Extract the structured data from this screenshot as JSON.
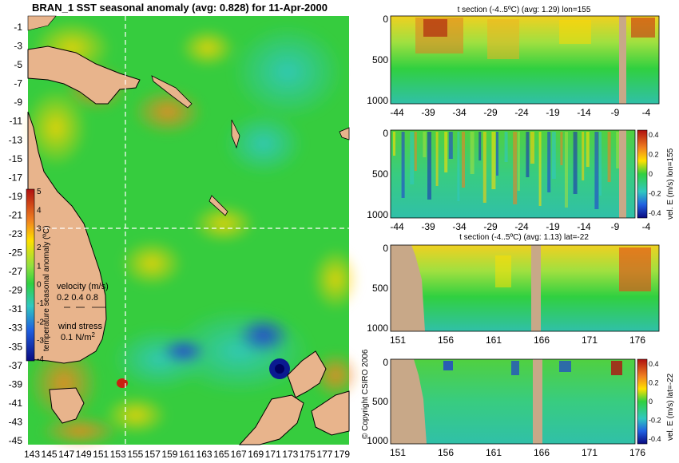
{
  "map": {
    "title": "BRAN_1 SST seasonal anomaly  (avg: 0.828) for 11-Apr-2000",
    "type": "heatmap",
    "lat_ticks": [
      "-1",
      "-3",
      "-5",
      "-7",
      "-9",
      "-11",
      "-13",
      "-15",
      "-17",
      "-19",
      "-21",
      "-23",
      "-25",
      "-27",
      "-29",
      "-31",
      "-33",
      "-35",
      "-37",
      "-39",
      "-41",
      "-43",
      "-45"
    ],
    "lon_ticks": [
      "143",
      "145",
      "147",
      "149",
      "151",
      "153",
      "155",
      "157",
      "159",
      "161",
      "163",
      "165",
      "167",
      "169",
      "171",
      "173",
      "175",
      "177",
      "179"
    ],
    "crosshair": {
      "lon": 155,
      "lat": -22
    },
    "colorbar": {
      "label": "temperature seasonal anomaly (ºC)",
      "ticks": [
        "5",
        "4",
        "3",
        "2",
        "1",
        "0",
        "-1",
        "-2",
        "-3",
        "-4"
      ]
    },
    "velocity_legend": {
      "label": "velocity (m/s)",
      "values": "0.2 0.4 0.8"
    },
    "wind_legend": {
      "label": "wind stress",
      "value": "0.1 N/m",
      "sup": "2"
    }
  },
  "panels": [
    {
      "title": "t section (-4..5ºC) (avg: 1.29) lon=155",
      "x_ticks": [
        "-44",
        "-39",
        "-34",
        "-29",
        "-24",
        "-19",
        "-14",
        "-9",
        "-4"
      ],
      "y_ticks": [
        "0",
        "500",
        "1000"
      ]
    },
    {
      "title": "",
      "x_ticks": [
        "-44",
        "-39",
        "-34",
        "-29",
        "-24",
        "-19",
        "-14",
        "-9",
        "-4"
      ],
      "y_ticks": [
        "0",
        "500",
        "1000"
      ],
      "colorbar_label": "vel. E (m/s) lon=155",
      "colorbar_ticks": [
        "0.4",
        "0.2",
        "0",
        "-0.2",
        "-0.4"
      ]
    },
    {
      "title": "t section (-4..5ºC) (avg: 1.13) lat=-22",
      "x_ticks": [
        "151",
        "156",
        "161",
        "166",
        "171",
        "176"
      ],
      "y_ticks": [
        "0",
        "500",
        "1000"
      ]
    },
    {
      "title": "",
      "x_ticks": [
        "151",
        "156",
        "161",
        "166",
        "171",
        "176"
      ],
      "y_ticks": [
        "0",
        "500",
        "1000"
      ],
      "colorbar_label": "vel. E (m/s) lat=-22",
      "colorbar_ticks": [
        "0.4",
        "0.2",
        "0",
        "-0.2",
        "-0.4"
      ]
    }
  ],
  "copyright": "© Copyright CSIRO 2006",
  "colors": {
    "land": "#e8b48c",
    "green": "#2ecc3a",
    "cyan": "#30c8b0",
    "blue": "#1a3cc8",
    "orange": "#f0a020",
    "red": "#c83010"
  }
}
